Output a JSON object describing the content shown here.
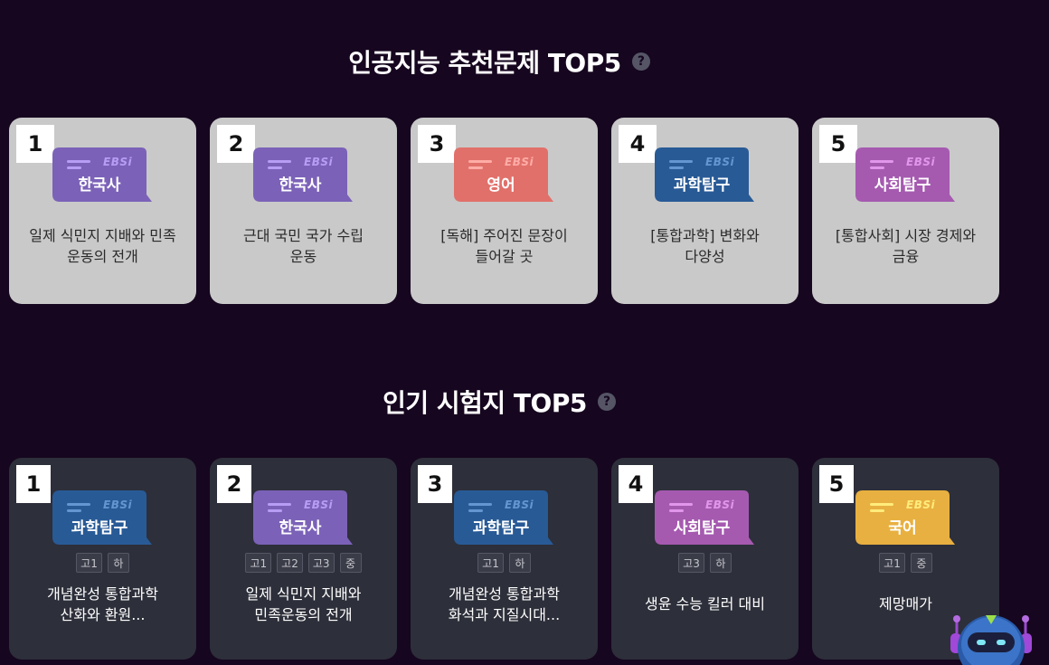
{
  "ai_section": {
    "title": "인공지능 추천문제 TOP5",
    "help": "?",
    "cards": [
      {
        "rank": "1",
        "subject": "한국사",
        "color": "#7b62b8",
        "text": "일제 식민지 지배와 민족\n운동의 전개"
      },
      {
        "rank": "2",
        "subject": "한국사",
        "color": "#7b62b8",
        "text": "근대 국민 국가 수립\n운동"
      },
      {
        "rank": "3",
        "subject": "영어",
        "color": "#e1706a",
        "text": "[독해] 주어진 문장이\n들어갈 곳"
      },
      {
        "rank": "4",
        "subject": "과학탐구",
        "color": "#285a96",
        "text": "[통합과학] 변화와\n다양성"
      },
      {
        "rank": "5",
        "subject": "사회탐구",
        "color": "#a55ab0",
        "text": "[통합사회] 시장 경제와\n금융"
      }
    ]
  },
  "popular_section": {
    "title": "인기 시험지 TOP5",
    "help": "?",
    "cards": [
      {
        "rank": "1",
        "subject": "과학탐구",
        "color": "#285a96",
        "tags": [
          "고1",
          "하"
        ],
        "text": "개념완성 통합과학\n산화와 환원..."
      },
      {
        "rank": "2",
        "subject": "한국사",
        "color": "#7b62b8",
        "tags": [
          "고1",
          "고2",
          "고3",
          "중"
        ],
        "text": "일제 식민지 지배와\n민족운동의 전개"
      },
      {
        "rank": "3",
        "subject": "과학탐구",
        "color": "#285a96",
        "tags": [
          "고1",
          "하"
        ],
        "text": "개념완성 통합과학\n화석과 지질시대..."
      },
      {
        "rank": "4",
        "subject": "사회탐구",
        "color": "#a55ab0",
        "tags": [
          "고3",
          "하"
        ],
        "text": "생윤 수능 킬러 대비"
      },
      {
        "rank": "5",
        "subject": "국어",
        "color": "#e8b040",
        "tags": [
          "고1",
          "중"
        ],
        "text": "제망매가"
      }
    ]
  },
  "badge_logo": "EBSi",
  "colors": {
    "background": "#16061f",
    "light_card": "#c9c9c9",
    "dark_card": "#2d2f3a"
  },
  "icons": {
    "help": "help-icon",
    "assistant": "robot-assistant-icon"
  }
}
